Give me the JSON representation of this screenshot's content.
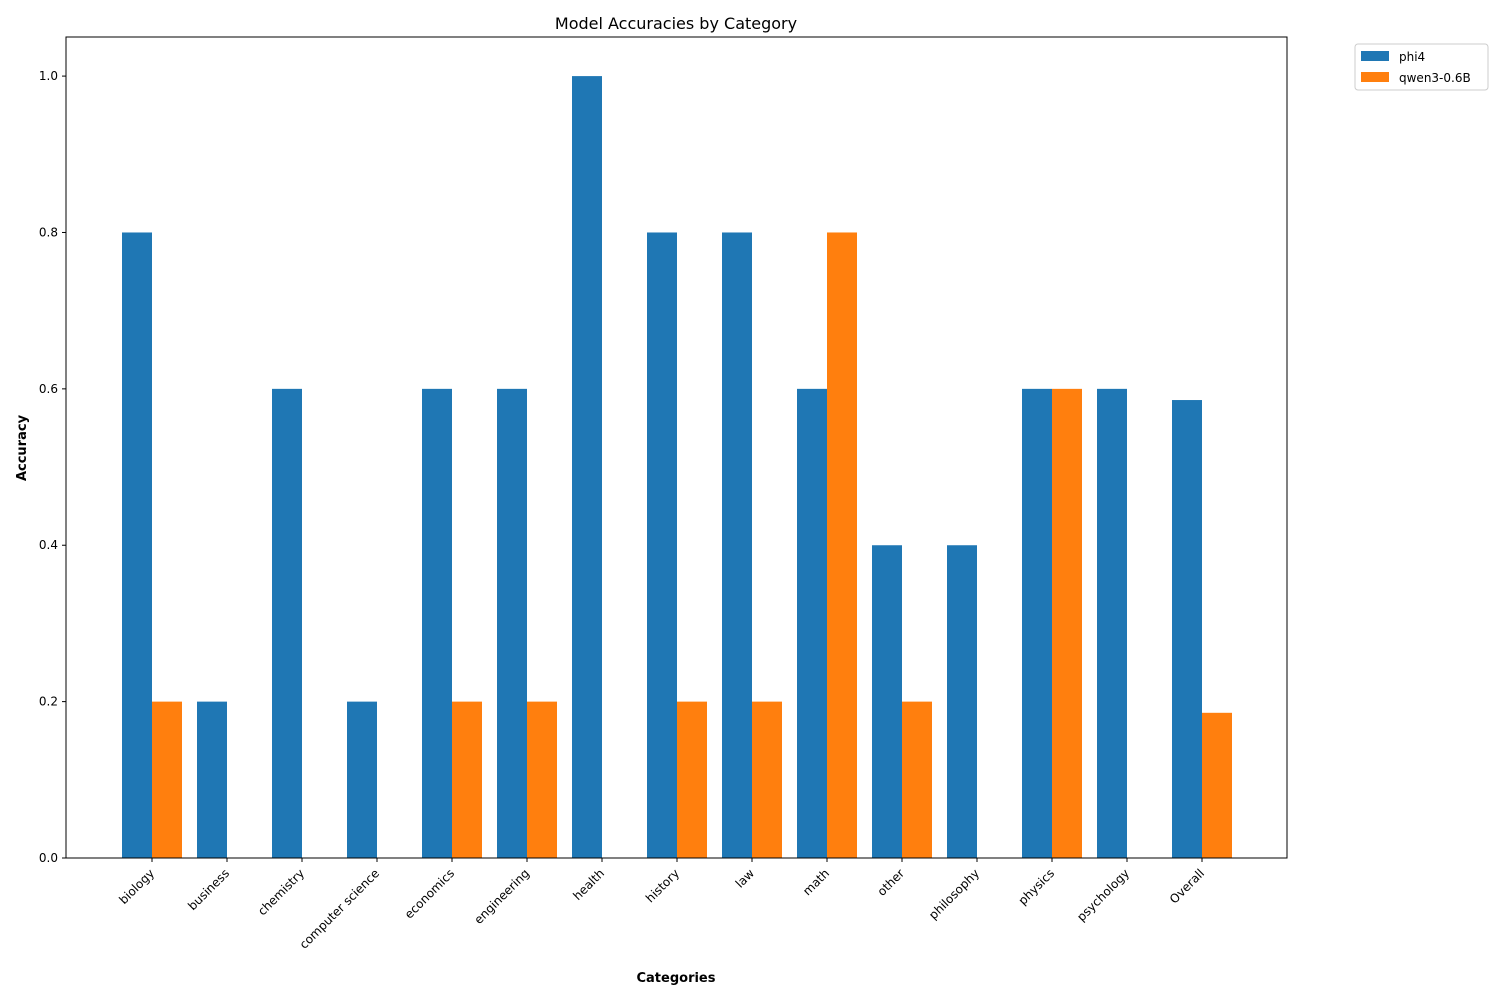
{
  "chart_data": {
    "type": "bar",
    "title": "Model Accuracies by Category",
    "xlabel": "Categories",
    "ylabel": "Accuracy",
    "ylim": [
      0,
      1.05
    ],
    "yticks": [
      0.0,
      0.2,
      0.4,
      0.6,
      0.8,
      1.0
    ],
    "ytick_labels": [
      "0.0",
      "0.2",
      "0.4",
      "0.6",
      "0.8",
      "1.0"
    ],
    "grid": false,
    "legend_placement": "outside top-right",
    "categories": [
      "biology",
      "business",
      "chemistry",
      "computer science",
      "economics",
      "engineering",
      "health",
      "history",
      "law",
      "math",
      "other",
      "philosophy",
      "physics",
      "psychology",
      "Overall"
    ],
    "series": [
      {
        "name": "phi4",
        "color": "#1f77b4",
        "values": [
          0.8,
          0.2,
          0.6,
          0.2,
          0.6,
          0.6,
          1.0,
          0.8,
          0.8,
          0.6,
          0.4,
          0.4,
          0.6,
          0.6,
          0.5857
        ]
      },
      {
        "name": "qwen3-0.6B",
        "color": "#ff7f0e",
        "values": [
          0.2,
          0.0,
          0.0,
          0.0,
          0.2,
          0.2,
          0.0,
          0.2,
          0.2,
          0.8,
          0.2,
          0.0,
          0.6,
          0.0,
          0.1857
        ]
      }
    ]
  }
}
